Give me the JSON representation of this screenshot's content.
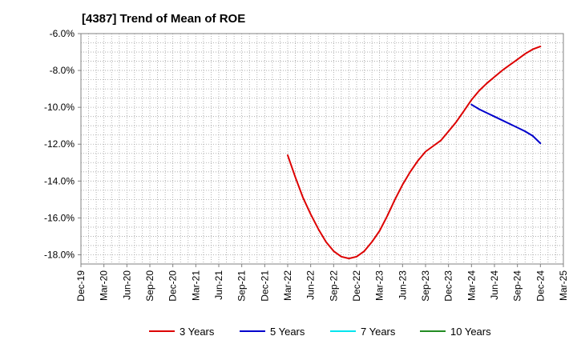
{
  "chart_data": {
    "type": "line",
    "title": "[4387]  Trend of Mean of ROE",
    "xlabel": "",
    "ylabel": "",
    "x_ticks": [
      "Dec-19",
      "Mar-20",
      "Jun-20",
      "Sep-20",
      "Dec-20",
      "Mar-21",
      "Jun-21",
      "Sep-21",
      "Dec-21",
      "Mar-22",
      "Jun-22",
      "Sep-22",
      "Dec-22",
      "Mar-23",
      "Jun-23",
      "Sep-23",
      "Dec-23",
      "Mar-24",
      "Jun-24",
      "Sep-24",
      "Dec-24",
      "Mar-25"
    ],
    "y_ticks": [
      "-6.0%",
      "-8.0%",
      "-10.0%",
      "-12.0%",
      "-14.0%",
      "-16.0%",
      "-18.0%"
    ],
    "ylim": [
      -18.5,
      -6.0
    ],
    "grid": true,
    "legend_position": "bottom",
    "series": [
      {
        "name": "3 Years",
        "color": "#dd0000",
        "x": [
          "Mar-22",
          "Apr-22",
          "May-22",
          "Jun-22",
          "Jul-22",
          "Aug-22",
          "Sep-22",
          "Oct-22",
          "Nov-22",
          "Dec-22",
          "Jan-23",
          "Feb-23",
          "Mar-23",
          "Apr-23",
          "May-23",
          "Jun-23",
          "Jul-23",
          "Aug-23",
          "Sep-23",
          "Oct-23",
          "Nov-23",
          "Dec-23",
          "Jan-24",
          "Feb-24",
          "Mar-24",
          "Apr-24",
          "May-24",
          "Jun-24",
          "Jul-24",
          "Aug-24",
          "Sep-24",
          "Oct-24",
          "Nov-24",
          "Dec-24"
        ],
        "values": [
          -12.6,
          -13.8,
          -14.9,
          -15.8,
          -16.6,
          -17.3,
          -17.8,
          -18.1,
          -18.2,
          -18.1,
          -17.8,
          -17.3,
          -16.7,
          -15.9,
          -15.0,
          -14.2,
          -13.5,
          -12.9,
          -12.4,
          -12.1,
          -11.8,
          -11.3,
          -10.8,
          -10.2,
          -9.6,
          -9.1,
          -8.7,
          -8.35,
          -8.0,
          -7.7,
          -7.4,
          -7.1,
          -6.85,
          -6.7
        ]
      },
      {
        "name": "5 Years",
        "color": "#0000cc",
        "x": [
          "Mar-24",
          "Apr-24",
          "May-24",
          "Jun-24",
          "Jul-24",
          "Aug-24",
          "Sep-24",
          "Oct-24",
          "Nov-24",
          "Dec-24"
        ],
        "values": [
          -9.85,
          -10.1,
          -10.3,
          -10.5,
          -10.7,
          -10.9,
          -11.1,
          -11.3,
          -11.55,
          -11.95
        ]
      },
      {
        "name": "7 Years",
        "color": "#00e5ee",
        "x": [],
        "values": []
      },
      {
        "name": "10 Years",
        "color": "#228b22",
        "x": [],
        "values": []
      }
    ]
  }
}
